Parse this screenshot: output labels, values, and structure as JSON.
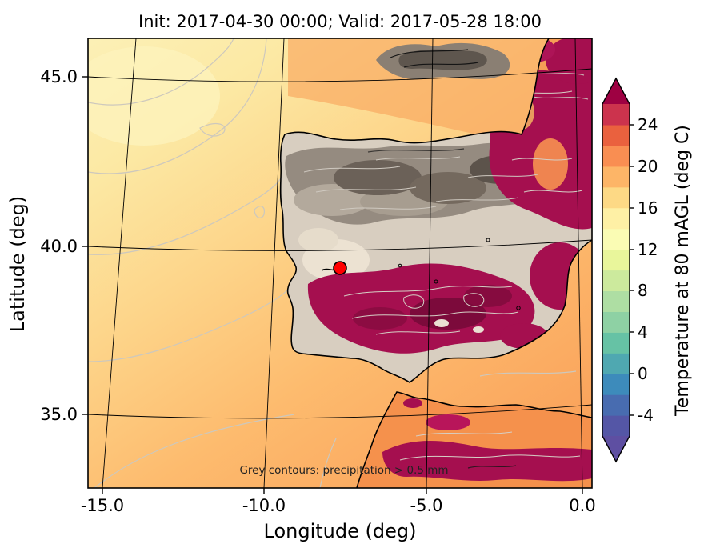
{
  "chart_data": {
    "type": "heatmap",
    "title": "Init: 2017-04-30 00:00; Valid: 2017-05-28 18:00",
    "xlabel": "Longitude (deg)",
    "ylabel": "Latitude (deg)",
    "xlim": [
      -16.3,
      0.6
    ],
    "ylim": [
      33.4,
      46.2
    ],
    "xtick_labels": [
      "-15.0",
      "-10.0",
      "-5.0",
      "0.0"
    ],
    "ytick_labels": [
      "45.0",
      "40.0",
      "35.0"
    ],
    "grid": "curved graticule (conic map projection), black lines",
    "colorbar": {
      "label": "Temperature at 80 mAGL (deg C)",
      "tick_labels": [
        "24",
        "20",
        "16",
        "12",
        "8",
        "4",
        "0",
        "-4"
      ],
      "tick_values": [
        24,
        20,
        16,
        12,
        8,
        4,
        0,
        -4
      ],
      "units": "deg C",
      "extend": "both",
      "over_color": "#9e0142",
      "under_color": "#5e4fa2",
      "segment_colors_cold_to_hot": [
        "#5456a6",
        "#486cb0",
        "#3d8bbb",
        "#4fa8b1",
        "#66c2a5",
        "#8ed1a4",
        "#aedea3",
        "#ccea9d",
        "#e9f69b",
        "#fafcb4",
        "#fef0a5",
        "#fdd985",
        "#fdb567",
        "#f98e52",
        "#ea613e",
        "#cc334d"
      ]
    },
    "annotation": "Grey contours: precipitation > 0.5 mm",
    "marker": {
      "lon": -7.7,
      "lat": 39.4,
      "fill": "#ff0000",
      "edge": "#000000"
    },
    "map": {
      "region": "Iberian Peninsula, Bay of Biscay, western Mediterranean, northern Morocco/Algeria",
      "graticule_lons": [
        -15,
        -10,
        -5,
        0
      ],
      "graticule_lats": [
        35,
        40,
        45
      ],
      "field_summary": [
        "Atlantic ocean to the west: ~12-18 deg C, pale yellow in NW grading to orange south and east",
        "Hot crimson areas (>24 deg C): central/southern Spain, east and northeast Spain, top-right corner (S France), northern Morocco/Algeria band",
        "Dense grey/dark precipitation contour shading over northern Spain, Pyrenees and Bay of Biscay",
        "Light grey precipitation contours (>0.5 mm) scattered over land and ocean",
        "Red circular marker near lon -7.7, lat 39.4"
      ]
    }
  }
}
